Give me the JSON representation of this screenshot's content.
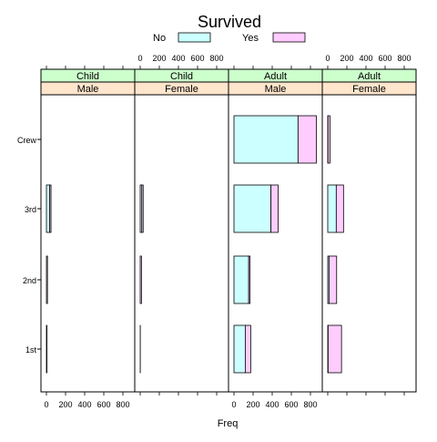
{
  "chart_data": {
    "type": "bar",
    "orientation": "horizontal",
    "stacked": true,
    "title": "Survived",
    "xlabel": "Freq",
    "ylabel": "",
    "xlim": [
      -50,
      900
    ],
    "x_ticks": [
      "0",
      "200",
      "400",
      "600",
      "800"
    ],
    "categories": [
      "1st",
      "2nd",
      "3rd",
      "Crew"
    ],
    "legend": {
      "placement": "top",
      "items": [
        {
          "label": "No",
          "color": "#ccffff"
        },
        {
          "label": "Yes",
          "color": "#ffccff"
        }
      ]
    },
    "panels": [
      {
        "age": "Child",
        "sex": "Male",
        "series": [
          {
            "name": "No",
            "values": [
              0,
              0,
              35,
              0
            ]
          },
          {
            "name": "Yes",
            "values": [
              5,
              11,
              13,
              0
            ]
          }
        ]
      },
      {
        "age": "Child",
        "sex": "Female",
        "series": [
          {
            "name": "No",
            "values": [
              0,
              0,
              17,
              0
            ]
          },
          {
            "name": "Yes",
            "values": [
              1,
              13,
              14,
              0
            ]
          }
        ]
      },
      {
        "age": "Adult",
        "sex": "Male",
        "series": [
          {
            "name": "No",
            "values": [
              118,
              154,
              387,
              670
            ]
          },
          {
            "name": "Yes",
            "values": [
              57,
              14,
              75,
              192
            ]
          }
        ]
      },
      {
        "age": "Adult",
        "sex": "Female",
        "series": [
          {
            "name": "No",
            "values": [
              4,
              13,
              89,
              3
            ]
          },
          {
            "name": "Yes",
            "values": [
              140,
              80,
              76,
              20
            ]
          }
        ]
      }
    ]
  },
  "colors": {
    "no_fill": "#ccffff",
    "yes_fill": "#ffccff",
    "age_strip": "#ccffcc",
    "sex_strip": "#ffe5cc"
  }
}
